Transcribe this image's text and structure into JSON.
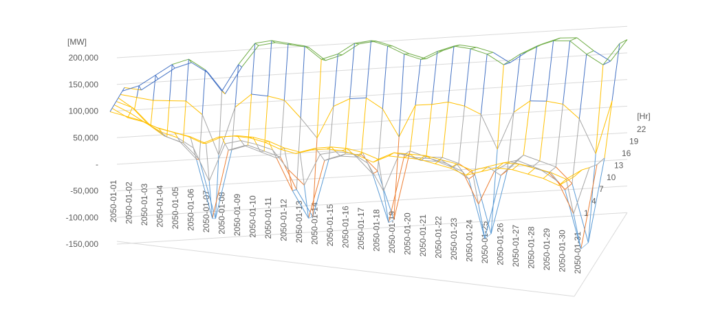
{
  "chart_data": {
    "type": "surface",
    "y_label": "[MW]",
    "z_label": "[Hr]",
    "categories": [
      "2050-01-01",
      "2050-01-02",
      "2050-01-03",
      "2050-01-04",
      "2050-01-05",
      "2050-01-06",
      "2050-01-07",
      "2050-01-08",
      "2050-01-09",
      "2050-01-10",
      "2050-01-11",
      "2050-01-12",
      "2050-01-13",
      "2050-01-14",
      "2050-01-15",
      "2050-01-16",
      "2050-01-17",
      "2050-01-18",
      "2050-01-19",
      "2050-01-20",
      "2050-01-21",
      "2050-01-22",
      "2050-01-23",
      "2050-01-24",
      "2050-01-25",
      "2050-01-26",
      "2050-01-27",
      "2050-01-28",
      "2050-01-29",
      "2050-01-30",
      "2050-01-31"
    ],
    "hours": [
      "1",
      "4",
      "7",
      "10",
      "13",
      "16",
      "19",
      "22"
    ],
    "values": [
      [
        100000,
        95000,
        90000,
        80000,
        75000,
        70000,
        60000,
        75000,
        80000,
        80000,
        75000,
        65000,
        60000,
        70000,
        75000,
        75000,
        70000,
        60000,
        75000,
        75000,
        75000,
        70000,
        65000,
        55000,
        65000,
        75000,
        75000,
        70000,
        65000,
        55000,
        75000
      ],
      [
        100000,
        85000,
        80000,
        70000,
        65000,
        60000,
        50000,
        65000,
        70000,
        70000,
        65000,
        55000,
        50000,
        60000,
        65000,
        65000,
        60000,
        50000,
        65000,
        65000,
        65000,
        60000,
        55000,
        45000,
        55000,
        65000,
        65000,
        60000,
        55000,
        45000,
        65000
      ],
      [
        100000,
        87000,
        70000,
        55000,
        47000,
        30000,
        -30000,
        42000,
        50000,
        45000,
        37000,
        2000,
        -25000,
        35000,
        42000,
        42000,
        25000,
        -25000,
        47000,
        42000,
        42000,
        35000,
        22000,
        -37000,
        27000,
        47000,
        42000,
        35000,
        17000,
        -42000,
        47000
      ],
      [
        100000,
        90000,
        60000,
        40000,
        30000,
        0,
        -110000,
        20000,
        30000,
        20000,
        10000,
        -50000,
        -100000,
        10000,
        20000,
        20000,
        -10000,
        -100000,
        30000,
        20000,
        20000,
        10000,
        -10000,
        -120000,
        0,
        30000,
        20000,
        10000,
        -20000,
        -130000,
        30000
      ],
      [
        100000,
        80000,
        50000,
        30000,
        20000,
        -10000,
        -120000,
        10000,
        20000,
        10000,
        0,
        -60000,
        -110000,
        0,
        10000,
        10000,
        -20000,
        -110000,
        20000,
        10000,
        10000,
        0,
        -20000,
        -130000,
        -10000,
        20000,
        10000,
        0,
        -30000,
        -140000,
        20000
      ],
      [
        100000,
        95000,
        90000,
        90000,
        90000,
        65000,
        -10000,
        80000,
        105000,
        102000,
        95000,
        62000,
        25000,
        85000,
        100000,
        102000,
        82000,
        30000,
        90000,
        92000,
        97000,
        90000,
        75000,
        10000,
        80000,
        102000,
        102000,
        97000,
        70000,
        5000,
        105000
      ],
      [
        100000,
        110000,
        130000,
        150000,
        160000,
        140000,
        100000,
        150000,
        190000,
        195000,
        190000,
        185000,
        160000,
        170000,
        190000,
        195000,
        185000,
        170000,
        160000,
        175000,
        185000,
        180000,
        170000,
        150000,
        170000,
        185000,
        195000,
        195000,
        170000,
        150000,
        190000
      ],
      [
        100000,
        95000,
        115000,
        135000,
        145000,
        125000,
        85000,
        135000,
        175000,
        180000,
        175000,
        170000,
        145000,
        155000,
        175000,
        180000,
        170000,
        155000,
        145000,
        160000,
        170000,
        165000,
        155000,
        135000,
        155000,
        170000,
        180000,
        180000,
        155000,
        135000,
        175000
      ]
    ],
    "ylim": [
      -150000,
      200000
    ],
    "yticks": [
      {
        "value": -150000,
        "label": "-150,000"
      },
      {
        "value": -100000,
        "label": "-100,000"
      },
      {
        "value": -50000,
        "label": "-50,000"
      },
      {
        "value": 0,
        "label": "-"
      },
      {
        "value": 50000,
        "label": "50,000"
      },
      {
        "value": 100000,
        "label": "100,000"
      },
      {
        "value": 150000,
        "label": "150,000"
      },
      {
        "value": 200000,
        "label": "200,000"
      }
    ],
    "band_colors": [
      "#9dc3e6",
      "#5b9bd5",
      "#ed7d31",
      "#a5a5a5",
      "#ffc000",
      "#4472c4",
      "#70ad47"
    ],
    "grid": true
  }
}
